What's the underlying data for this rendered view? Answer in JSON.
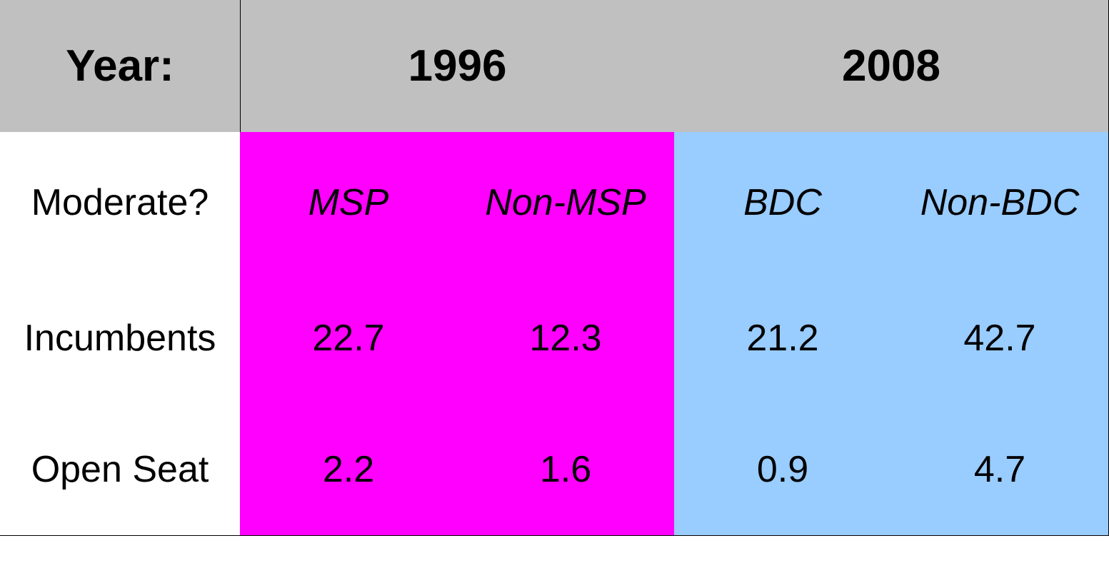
{
  "table": {
    "header": [
      "Year:",
      "1996",
      "2008"
    ],
    "rows": [
      [
        "Moderate?",
        "MSP",
        "Non-MSP",
        "BDC",
        "Non-BDC"
      ],
      [
        "Incumbents",
        22.7,
        12.3,
        21.2,
        42.7
      ],
      [
        "Open Seat",
        2.2,
        1.6,
        0.9,
        4.7
      ]
    ]
  }
}
